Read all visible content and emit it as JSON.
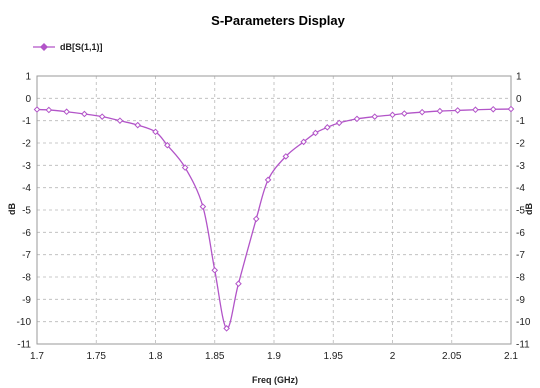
{
  "chart_data": {
    "type": "line",
    "title": "S-Parameters Display",
    "xlabel": "Freq (GHz)",
    "ylabel": "dB",
    "ylabel_right": "dB",
    "xlim": [
      1.7,
      2.1
    ],
    "ylim": [
      -11,
      1
    ],
    "x_ticks": [
      1.7,
      1.75,
      1.8,
      1.85,
      1.9,
      1.95,
      2,
      2.05,
      2.1
    ],
    "y_ticks": [
      1,
      0,
      -1,
      -2,
      -3,
      -4,
      -5,
      -6,
      -7,
      -8,
      -9,
      -10,
      -11
    ],
    "grid": true,
    "grid_style": "dashed",
    "legend": {
      "position": "top-left",
      "label": "dB[S(1,1)]"
    },
    "series": [
      {
        "name": "dB[S(1,1)]",
        "color": "#b254c8",
        "marker": "diamond",
        "x": [
          1.7,
          1.71,
          1.725,
          1.74,
          1.755,
          1.77,
          1.785,
          1.8,
          1.81,
          1.825,
          1.84,
          1.85,
          1.86,
          1.87,
          1.885,
          1.895,
          1.91,
          1.925,
          1.935,
          1.945,
          1.955,
          1.97,
          1.985,
          2.0,
          2.01,
          2.025,
          2.04,
          2.055,
          2.07,
          2.085,
          2.1
        ],
        "y": [
          -0.5,
          -0.52,
          -0.6,
          -0.7,
          -0.82,
          -1.0,
          -1.2,
          -1.5,
          -2.1,
          -3.1,
          -4.85,
          -7.7,
          -10.3,
          -8.3,
          -5.4,
          -3.65,
          -2.6,
          -1.95,
          -1.55,
          -1.3,
          -1.1,
          -0.92,
          -0.82,
          -0.74,
          -0.68,
          -0.62,
          -0.57,
          -0.54,
          -0.51,
          -0.49,
          -0.48
        ]
      }
    ]
  }
}
